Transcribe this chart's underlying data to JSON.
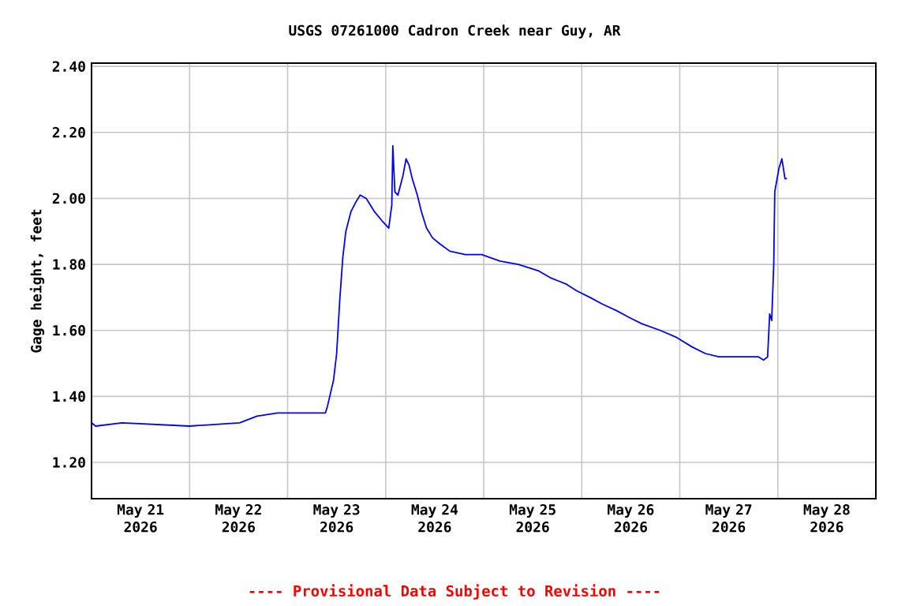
{
  "chart_data": {
    "type": "line",
    "title": "USGS 07261000 Cadron Creek near Guy, AR",
    "ylabel": "Gage height, feet",
    "annotations": [
      "---- Provisional Data Subject to Revision ----"
    ],
    "x": [
      "2026-05-21T00:00",
      "2026-05-21T01:00",
      "2026-05-21T07:30",
      "2026-05-22T00:00",
      "2026-05-22T12:15",
      "2026-05-22T16:30",
      "2026-05-22T21:30",
      "2026-05-23T09:15",
      "2026-05-23T09:45",
      "2026-05-23T11:15",
      "2026-05-23T12:00",
      "2026-05-23T12:45",
      "2026-05-23T13:30",
      "2026-05-23T14:15",
      "2026-05-23T15:30",
      "2026-05-23T16:45",
      "2026-05-23T17:45",
      "2026-05-23T19:15",
      "2026-05-23T21:15",
      "2026-05-23T23:15",
      "2026-05-24T00:45",
      "2026-05-24T01:30",
      "2026-05-24T01:45",
      "2026-05-24T02:15",
      "2026-05-24T03:00",
      "2026-05-24T04:15",
      "2026-05-24T05:00",
      "2026-05-24T05:45",
      "2026-05-24T06:30",
      "2026-05-24T07:45",
      "2026-05-24T08:45",
      "2026-05-24T10:00",
      "2026-05-24T11:30",
      "2026-05-24T13:30",
      "2026-05-24T15:45",
      "2026-05-24T19:30",
      "2026-05-24T23:30",
      "2026-05-25T04:00",
      "2026-05-25T08:30",
      "2026-05-25T13:30",
      "2026-05-25T16:15",
      "2026-05-25T18:15",
      "2026-05-25T20:15",
      "2026-05-25T22:45",
      "2026-05-26T02:00",
      "2026-05-26T05:00",
      "2026-05-26T08:30",
      "2026-05-26T11:30",
      "2026-05-26T14:45",
      "2026-05-26T19:15",
      "2026-05-26T23:00",
      "2026-05-27T03:00",
      "2026-05-27T06:15",
      "2026-05-27T09:30",
      "2026-05-27T19:15",
      "2026-05-27T20:30",
      "2026-05-27T21:30",
      "2026-05-27T22:00",
      "2026-05-27T22:30",
      "2026-05-27T23:00",
      "2026-05-27T23:15",
      "2026-05-28T00:15",
      "2026-05-28T01:00",
      "2026-05-28T01:45",
      "2026-05-28T02:15"
    ],
    "series": [
      {
        "color": "#0000ff",
        "values": [
          1.32,
          1.31,
          1.32,
          1.31,
          1.32,
          1.34,
          1.35,
          1.35,
          1.37,
          1.45,
          1.53,
          1.69,
          1.82,
          1.9,
          1.96,
          1.99,
          2.01,
          2.0,
          1.96,
          1.93,
          1.91,
          1.98,
          2.16,
          2.02,
          2.01,
          2.07,
          2.12,
          2.1,
          2.06,
          2.01,
          1.96,
          1.91,
          1.88,
          1.86,
          1.84,
          1.83,
          1.83,
          1.81,
          1.8,
          1.78,
          1.76,
          1.75,
          1.74,
          1.72,
          1.7,
          1.68,
          1.66,
          1.64,
          1.62,
          1.6,
          1.58,
          1.55,
          1.53,
          1.52,
          1.52,
          1.51,
          1.52,
          1.65,
          1.63,
          1.8,
          2.02,
          2.09,
          2.12,
          2.06,
          2.06
        ]
      }
    ],
    "xlim": [
      "2026-05-21T00:00",
      "2026-05-29T00:00"
    ],
    "xticks": [
      {
        "value": "2026-05-21T00:00",
        "label": null
      },
      {
        "value": "2026-05-22T00:00",
        "label": null
      },
      {
        "value": "2026-05-23T00:00",
        "label": null
      },
      {
        "value": "2026-05-24T00:00",
        "label": null
      },
      {
        "value": "2026-05-25T00:00",
        "label": null
      },
      {
        "value": "2026-05-26T00:00",
        "label": null
      },
      {
        "value": "2026-05-27T00:00",
        "label": null
      },
      {
        "value": "2026-05-28T00:00",
        "label": null
      },
      {
        "value": "2026-05-29T00:00",
        "label": null
      },
      {
        "value": "2026-05-21T12:00",
        "label": "May 21 2026"
      },
      {
        "value": "2026-05-22T12:00",
        "label": "May 22 2026"
      },
      {
        "value": "2026-05-23T12:00",
        "label": "May 23 2026"
      },
      {
        "value": "2026-05-24T12:00",
        "label": "May 24 2026"
      },
      {
        "value": "2026-05-25T12:00",
        "label": "May 25 2026"
      },
      {
        "value": "2026-05-26T12:00",
        "label": "May 26 2026"
      },
      {
        "value": "2026-05-27T12:00",
        "label": "May 27 2026"
      },
      {
        "value": "2026-05-28T12:00",
        "label": "May 28 2026"
      }
    ],
    "ylim": [
      1.09,
      2.41
    ],
    "yticks": [
      {
        "value": 1.2,
        "label": "1.20"
      },
      {
        "value": 1.4,
        "label": "1.40"
      },
      {
        "value": 1.6,
        "label": "1.60"
      },
      {
        "value": 1.8,
        "label": "1.80"
      },
      {
        "value": 2.0,
        "label": "2.00"
      },
      {
        "value": 2.2,
        "label": "2.20"
      },
      {
        "value": 2.4,
        "label": "2.40"
      }
    ],
    "grid": true,
    "marker": "none"
  }
}
